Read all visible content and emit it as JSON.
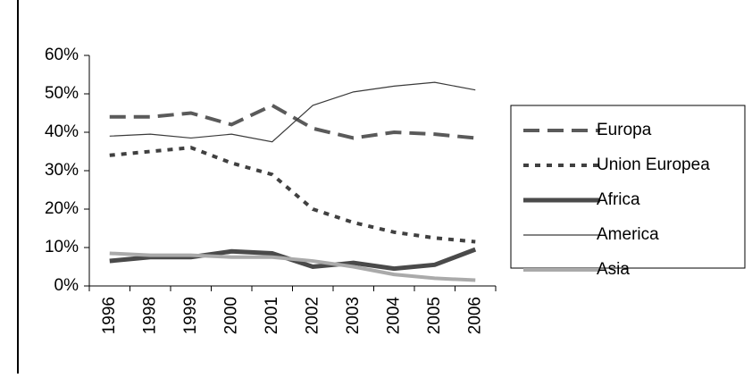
{
  "chart_data": {
    "type": "line",
    "categories": [
      "1996",
      "1998",
      "1999",
      "2000",
      "2001",
      "2002",
      "2003",
      "2004",
      "2005",
      "2006"
    ],
    "series": [
      {
        "name": "Europa",
        "color": "#5a5a5a",
        "values": [
          44,
          44,
          45,
          42,
          47,
          41,
          38.5,
          40,
          39.5,
          38.5
        ]
      },
      {
        "name": "Union Europea",
        "color": "#404040",
        "values": [
          34,
          35,
          36,
          32,
          29,
          20,
          16.5,
          14,
          12.5,
          11.5
        ]
      },
      {
        "name": "Africa",
        "color": "#4a4a4a",
        "values": [
          6.5,
          7.5,
          7.5,
          9,
          8.5,
          5,
          6,
          4.5,
          5.5,
          9.5
        ]
      },
      {
        "name": "America",
        "color": "#3a3a3a",
        "values": [
          39,
          39.5,
          38.5,
          39.5,
          37.5,
          47,
          50.5,
          52,
          53,
          51
        ]
      },
      {
        "name": "Asia",
        "color": "#aaaaaa",
        "values": [
          8.5,
          8,
          8,
          7.5,
          7.5,
          6.5,
          5,
          3,
          2,
          1.5
        ]
      }
    ],
    "ylim": [
      0,
      60
    ],
    "yticks": [
      {
        "value": 0,
        "label": "0%"
      },
      {
        "value": 10,
        "label": "10%"
      },
      {
        "value": 20,
        "label": "20%"
      },
      {
        "value": 30,
        "label": "30%"
      },
      {
        "value": 40,
        "label": "40%"
      },
      {
        "value": 50,
        "label": "50%"
      },
      {
        "value": 60,
        "label": "60%"
      }
    ],
    "legend": "right"
  }
}
